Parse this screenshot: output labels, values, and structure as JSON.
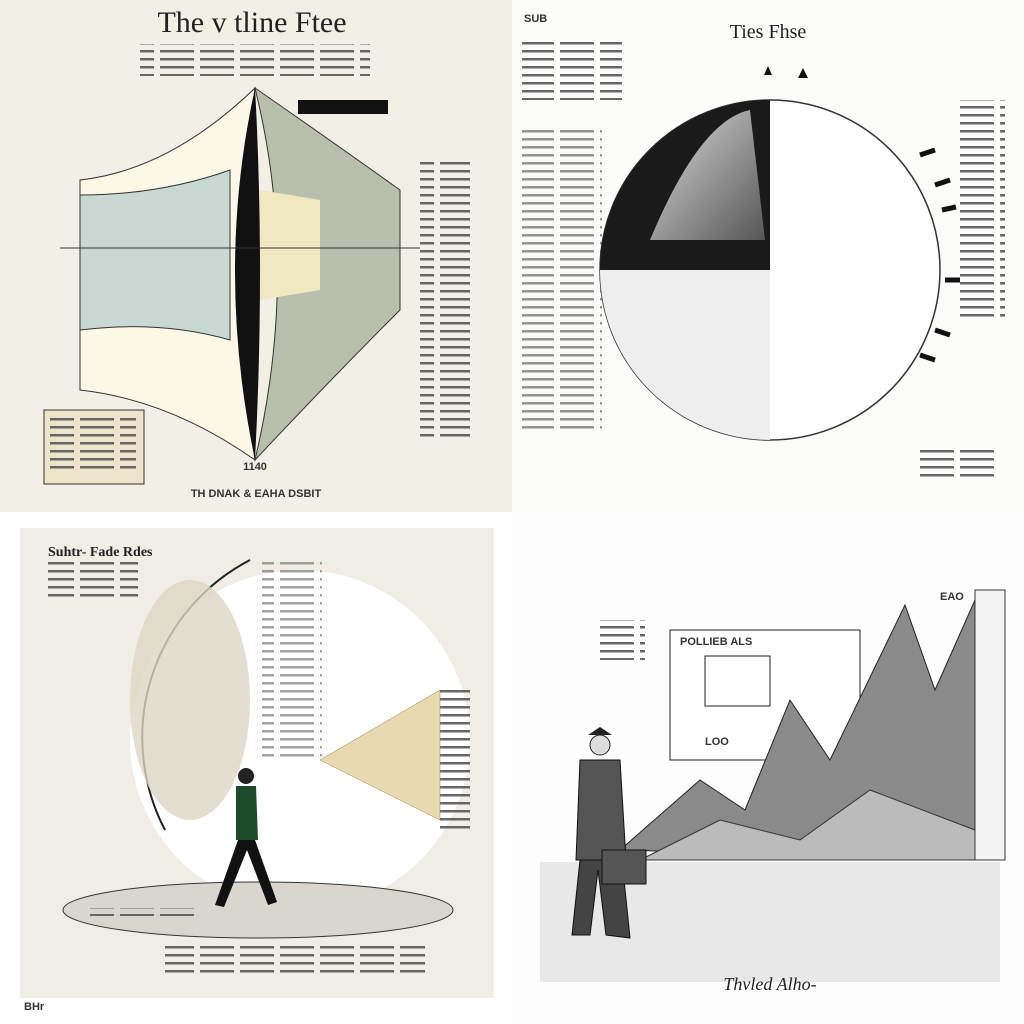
{
  "panels": [
    {
      "title": "The v tline Ftee",
      "footer": "TH DNAK & EAHA DSBIT",
      "labels": [
        "1140"
      ]
    },
    {
      "title": "Ties Fhse",
      "labels": [
        "SUB"
      ]
    },
    {
      "title": "Suhtr- Fade Rdes",
      "labels": [
        "BHr"
      ]
    },
    {
      "title": "Thvled Alho-",
      "labels": [
        "EAO",
        "POLLIEB ALS",
        "LOO"
      ]
    }
  ]
}
